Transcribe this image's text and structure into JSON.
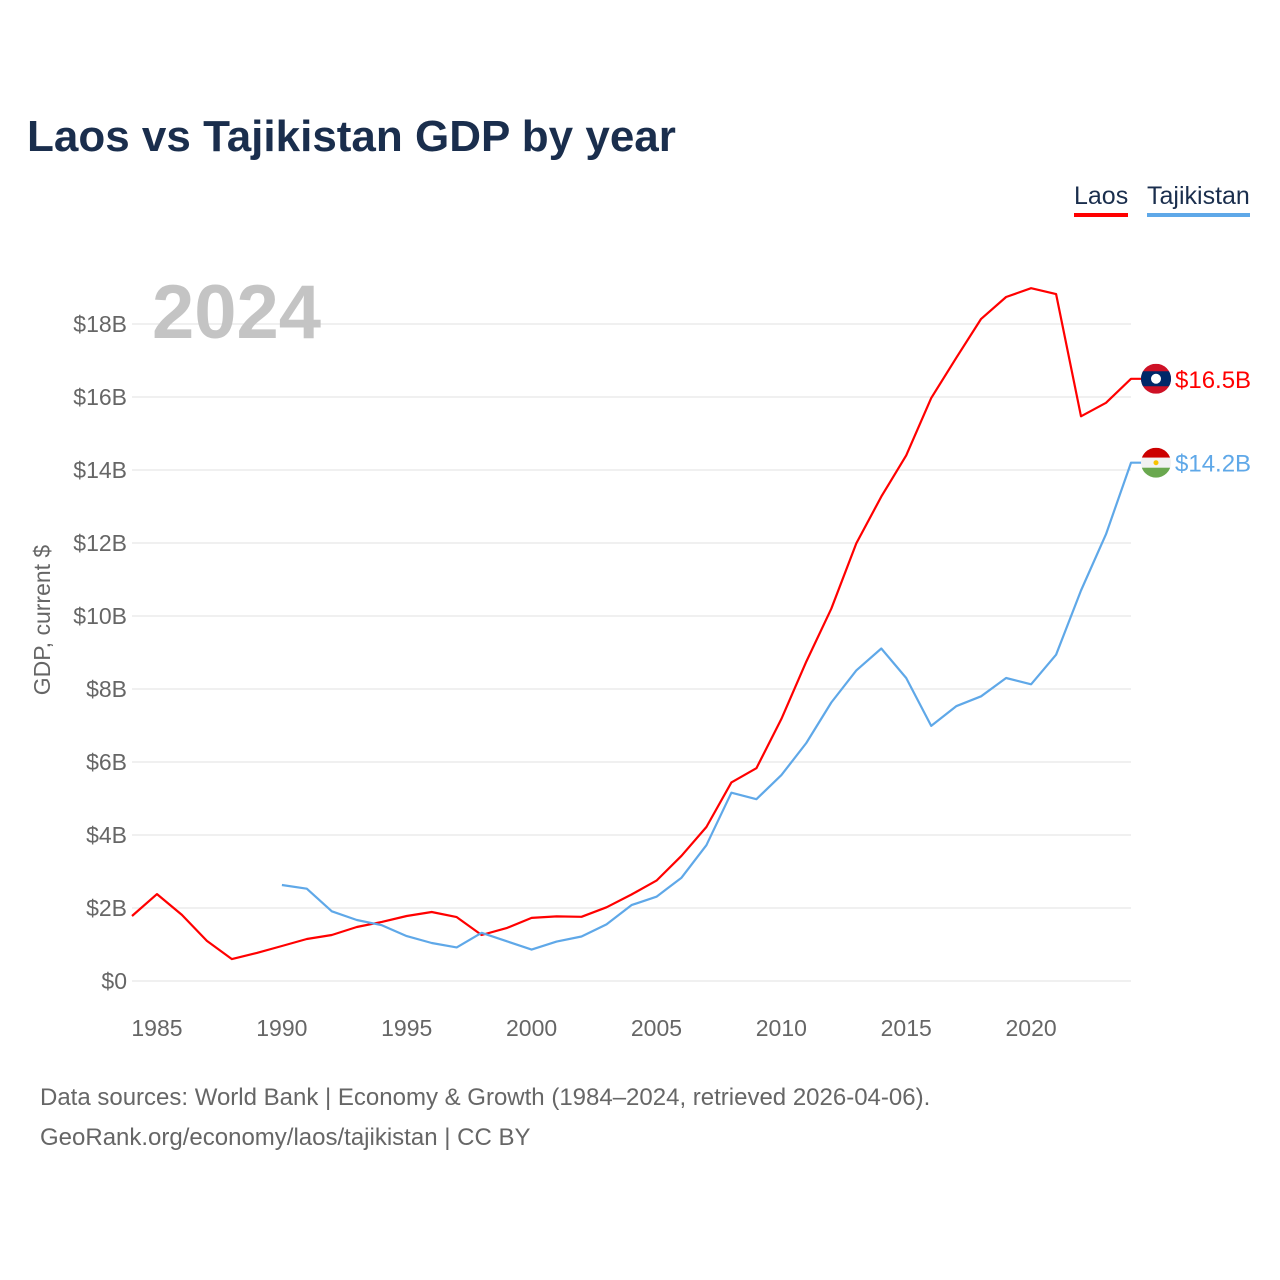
{
  "chart_data": {
    "type": "line",
    "title": "Laos vs Tajikistan GDP by year",
    "ylabel": "GDP, current $",
    "xlabel": "",
    "year_watermark": "2024",
    "xlim": [
      1984,
      2024
    ],
    "ylim": [
      0,
      19
    ],
    "x_ticks": [
      1985,
      1990,
      1995,
      2000,
      2005,
      2010,
      2015,
      2020
    ],
    "y_ticks": [
      0,
      2,
      4,
      6,
      8,
      10,
      12,
      14,
      16,
      18
    ],
    "y_tick_labels": [
      "$0",
      "$2B",
      "$4B",
      "$6B",
      "$8B",
      "$10B",
      "$12B",
      "$14B",
      "$16B",
      "$18B"
    ],
    "grid": true,
    "legend_position": "top-right",
    "series": [
      {
        "name": "Laos",
        "color": "#ff0000",
        "end_label": "$16.5B",
        "flag": "laos-flag",
        "x": [
          1984,
          1985,
          1986,
          1987,
          1988,
          1989,
          1990,
          1991,
          1992,
          1993,
          1994,
          1995,
          1996,
          1997,
          1998,
          1999,
          2000,
          2001,
          2002,
          2003,
          2004,
          2005,
          2006,
          2007,
          2008,
          2009,
          2010,
          2011,
          2012,
          2013,
          2014,
          2015,
          2016,
          2017,
          2018,
          2019,
          2020,
          2021,
          2022,
          2023,
          2024
        ],
        "values": [
          1.78,
          2.38,
          1.81,
          1.1,
          0.6,
          0.77,
          0.96,
          1.15,
          1.26,
          1.48,
          1.62,
          1.78,
          1.89,
          1.75,
          1.26,
          1.45,
          1.73,
          1.77,
          1.76,
          2.02,
          2.37,
          2.75,
          3.43,
          4.22,
          5.44,
          5.83,
          7.18,
          8.75,
          10.2,
          11.99,
          13.27,
          14.4,
          15.97,
          17.07,
          18.14,
          18.74,
          18.98,
          18.82,
          15.47,
          15.84,
          16.5
        ]
      },
      {
        "name": "Tajikistan",
        "color": "#5fa8e8",
        "end_label": "$14.2B",
        "flag": "tajikistan-flag",
        "x": [
          1990,
          1991,
          1992,
          1993,
          1994,
          1995,
          1996,
          1997,
          1998,
          1999,
          2000,
          2001,
          2002,
          2003,
          2004,
          2005,
          2006,
          2007,
          2008,
          2009,
          2010,
          2011,
          2012,
          2013,
          2014,
          2015,
          2016,
          2017,
          2018,
          2019,
          2020,
          2021,
          2022,
          2023,
          2024
        ],
        "values": [
          2.63,
          2.53,
          1.91,
          1.67,
          1.53,
          1.23,
          1.04,
          0.92,
          1.32,
          1.09,
          0.86,
          1.08,
          1.22,
          1.55,
          2.08,
          2.31,
          2.83,
          3.72,
          5.16,
          4.98,
          5.64,
          6.52,
          7.63,
          8.51,
          9.11,
          8.3,
          6.99,
          7.53,
          7.8,
          8.3,
          8.13,
          8.94,
          10.7,
          12.24,
          14.2
        ]
      }
    ]
  },
  "footer": {
    "line1": "Data sources: World Bank | Economy & Growth (1984–2024, retrieved 2026-04-06).",
    "line2": "GeoRank.org/economy/laos/tajikistan | CC BY"
  }
}
